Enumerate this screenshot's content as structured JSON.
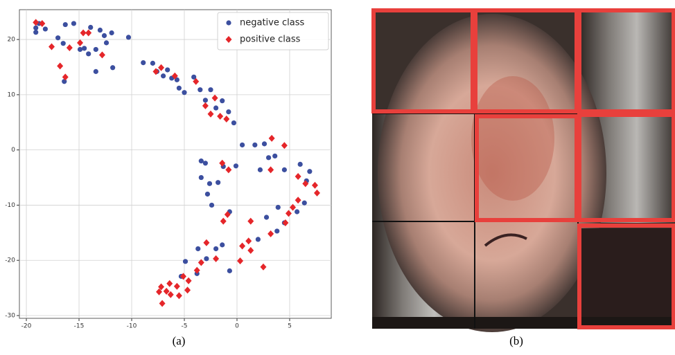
{
  "chart_data": {
    "type": "scatter",
    "series": [
      {
        "name": "negative class",
        "color": "#3c4f9f",
        "marker": "circle",
        "x": [
          -19.1,
          -19.1,
          -18.8,
          -18.2,
          -17.0,
          -16.5,
          -16.4,
          -16.3,
          -15.5,
          -14.9,
          -14.5,
          -14.1,
          -13.9,
          -13.4,
          -13.4,
          -13.0,
          -12.6,
          -12.4,
          -11.9,
          -11.8,
          -10.3,
          -8.9,
          -8.0,
          -7.6,
          -7.0,
          -6.6,
          -6.2,
          -5.7,
          -5.5,
          -5.0,
          -4.1,
          -3.5,
          -3.0,
          -2.5,
          -2.0,
          -1.4,
          -0.8,
          -0.3,
          0.5,
          1.7,
          2.2,
          2.6,
          3.0,
          3.6,
          4.5,
          6.0,
          6.6,
          6.9,
          6.4,
          -3.4,
          -3.0,
          -3.4,
          -2.6,
          -2.8,
          -2.4,
          -1.8,
          -1.3,
          -0.7,
          -0.1,
          5.7,
          4.5,
          3.8,
          3.9,
          2.8,
          2.0,
          -3.7,
          -2.9,
          -2.0,
          -1.4,
          -0.7,
          -3.8,
          -4.9,
          -5.3
        ],
        "values": [
          22.1,
          21.3,
          22.9,
          21.9,
          20.3,
          19.3,
          12.4,
          22.7,
          22.9,
          18.2,
          18.4,
          17.4,
          22.2,
          18.2,
          14.2,
          21.7,
          20.7,
          19.4,
          21.2,
          14.9,
          20.4,
          15.8,
          15.7,
          14.2,
          13.4,
          14.5,
          13.0,
          12.7,
          11.2,
          10.4,
          13.2,
          10.9,
          9.0,
          10.9,
          7.6,
          8.9,
          6.9,
          4.9,
          0.9,
          0.9,
          -3.6,
          1.1,
          -1.4,
          -1.1,
          -3.6,
          -2.6,
          -5.6,
          -3.9,
          -9.6,
          -2.0,
          -2.4,
          -5.0,
          -6.1,
          -8.0,
          -10.0,
          -5.9,
          -3.0,
          -11.2,
          -2.9,
          -11.2,
          -13.2,
          -14.7,
          -10.4,
          -12.2,
          -16.2,
          -17.9,
          -19.7,
          -17.9,
          -17.2,
          -21.9,
          -22.4,
          -20.2,
          -22.9
        ]
      },
      {
        "name": "positive class",
        "color": "#e5262a",
        "marker": "diamond",
        "x": [
          -19.1,
          -18.5,
          -16.8,
          -16.3,
          -17.6,
          -15.9,
          -14.9,
          -14.6,
          -14.1,
          -12.8,
          -7.7,
          -7.2,
          -5.9,
          -3.9,
          -3.0,
          -2.5,
          -2.1,
          -1.6,
          -1.0,
          -1.4,
          -0.8,
          3.3,
          3.2,
          4.5,
          5.8,
          6.5,
          7.4,
          7.6,
          5.3,
          5.8,
          4.9,
          4.6,
          3.2,
          1.3,
          -0.9,
          -1.3,
          -2.9,
          -3.4,
          -2.0,
          0.3,
          1.1,
          0.5,
          1.3,
          2.5,
          -5.1,
          -5.7,
          -6.4,
          -6.7,
          -7.2,
          -7.1,
          -7.4,
          -6.3,
          -5.5,
          -4.7,
          -4.6,
          -3.8
        ],
        "values": [
          23.1,
          22.9,
          15.2,
          13.2,
          18.7,
          18.5,
          19.4,
          21.2,
          21.2,
          17.2,
          14.2,
          14.9,
          13.4,
          12.4,
          8.0,
          6.5,
          9.4,
          6.1,
          5.6,
          -2.4,
          -3.6,
          2.1,
          -3.6,
          0.8,
          -4.8,
          -6.1,
          -6.4,
          -7.8,
          -10.4,
          -9.1,
          -11.5,
          -13.2,
          -15.2,
          -12.9,
          -11.7,
          -12.9,
          -16.8,
          -20.4,
          -19.7,
          -20.1,
          -16.5,
          -17.4,
          -18.2,
          -21.2,
          -22.9,
          -24.7,
          -24.2,
          -25.6,
          -24.8,
          -27.8,
          -25.7,
          -26.2,
          -26.4,
          -25.4,
          -23.7,
          -21.8
        ]
      }
    ],
    "xlim": [
      -20.66,
      8.95
    ],
    "ylim": [
      -30.5,
      25.4
    ],
    "xticks": [
      -20,
      -15,
      -10,
      -5,
      0,
      5
    ],
    "yticks": [
      -30,
      -20,
      -10,
      0,
      10,
      20
    ],
    "grid": true,
    "legend": "upper right"
  },
  "captions": [
    "(a)",
    "(b)"
  ]
}
